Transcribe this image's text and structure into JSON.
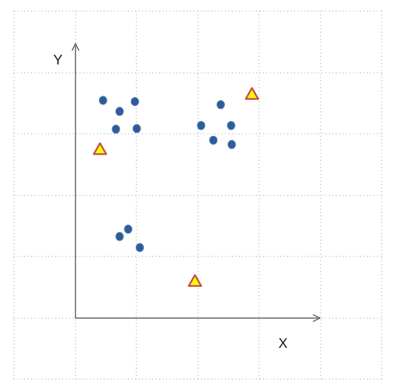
{
  "chart_data": {
    "type": "scatter",
    "xlabel": "X",
    "ylabel": "Y",
    "xlim": [
      0,
      4
    ],
    "ylim": [
      0,
      4
    ],
    "grid": true,
    "grid_style": "dotted",
    "series": [
      {
        "marker": "circle",
        "color": "#2f5c99",
        "points": [
          {
            "x": 0.45,
            "y": 3.55
          },
          {
            "x": 0.72,
            "y": 3.37
          },
          {
            "x": 0.97,
            "y": 3.53
          },
          {
            "x": 0.66,
            "y": 3.08
          },
          {
            "x": 1.0,
            "y": 3.09
          },
          {
            "x": 2.37,
            "y": 3.48
          },
          {
            "x": 2.05,
            "y": 3.14
          },
          {
            "x": 2.54,
            "y": 3.14
          },
          {
            "x": 2.25,
            "y": 2.9
          },
          {
            "x": 2.55,
            "y": 2.83
          },
          {
            "x": 0.86,
            "y": 1.45
          },
          {
            "x": 0.72,
            "y": 1.33
          },
          {
            "x": 1.05,
            "y": 1.15
          }
        ]
      },
      {
        "marker": "triangle",
        "color": "#ffff00",
        "stroke": "#c0504d",
        "points": [
          {
            "x": 2.88,
            "y": 3.65
          },
          {
            "x": 0.4,
            "y": 2.75
          },
          {
            "x": 1.95,
            "y": 0.6
          }
        ]
      }
    ]
  }
}
